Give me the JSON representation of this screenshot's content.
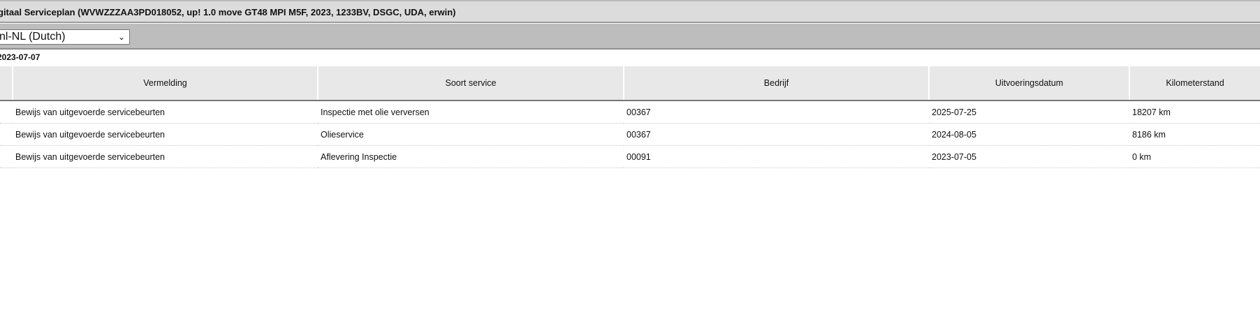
{
  "title": "gitaal Serviceplan (WVWZZZAA3PD018052, up! 1.0 move GT48 MPI M5F, 2023, 1233BV, DSGC, UDA, erwin)",
  "language_select": {
    "value": "nl-NL (Dutch)"
  },
  "date": "2023-07-07",
  "table": {
    "headers": [
      "",
      "Vermelding",
      "Soort service",
      "Bedrijf",
      "Uitvoeringsdatum",
      "Kilometerstand"
    ],
    "rows": [
      [
        "",
        "Bewijs van uitgevoerde servicebeurten",
        "Inspectie met olie verversen",
        "00367",
        "2025-07-25",
        "18207 km"
      ],
      [
        "",
        "Bewijs van uitgevoerde servicebeurten",
        "Olieservice",
        "00367",
        "2024-08-05",
        "8186 km"
      ],
      [
        "",
        "Bewijs van uitgevoerde servicebeurten",
        "Aflevering Inspectie",
        "00091",
        "2023-07-05",
        "0 km"
      ]
    ]
  }
}
